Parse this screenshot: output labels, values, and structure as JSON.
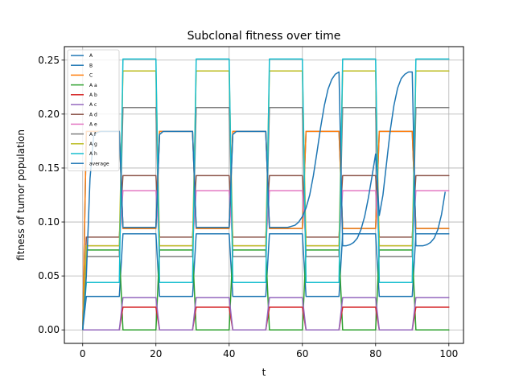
{
  "chart_data": {
    "type": "line",
    "title": "Subclonal fitness over time",
    "xlabel": "t",
    "ylabel": "fitness of tumor population",
    "xlim": [
      -5,
      104
    ],
    "ylim": [
      -0.0125,
      0.2625
    ],
    "xticks": [
      0,
      20,
      40,
      60,
      80,
      100
    ],
    "yticks": [
      0.0,
      0.05,
      0.1,
      0.15,
      0.2,
      0.25
    ],
    "ytick_labels": [
      "0.00",
      "0.05",
      "0.10",
      "0.15",
      "0.20",
      "0.25"
    ],
    "grid": true,
    "legend_position": "top-left",
    "x_end": 99,
    "segments": [
      {
        "on": [
          1,
          9
        ],
        "off": [
          10,
          11
        ]
      },
      {
        "on": [
          21,
          29
        ],
        "off": [
          30,
          31
        ]
      },
      {
        "on": [
          41,
          49
        ],
        "off": [
          50,
          51
        ]
      },
      {
        "on": [
          61,
          69
        ],
        "off": [
          70,
          71
        ]
      },
      {
        "on": [
          81,
          89
        ],
        "off": [
          90,
          91
        ]
      }
    ],
    "series": [
      {
        "name": "A",
        "color": "#1f77b4",
        "on_value": 0.184,
        "off_value": 0.094
      },
      {
        "name": "B",
        "color": "#1f77b4",
        "on_value": 0.031,
        "off_value": 0.089
      },
      {
        "name": "C",
        "color": "#ff7f0e",
        "on_value": 0.184,
        "off_value": 0.094
      },
      {
        "name": "A a",
        "color": "#2ca02c",
        "on_value": 0.074,
        "off_value": 0.0
      },
      {
        "name": "A b",
        "color": "#d62728",
        "on_value": 0.0,
        "off_value": 0.021
      },
      {
        "name": "A c",
        "color": "#9467bd",
        "on_value": 0.0,
        "off_value": 0.03
      },
      {
        "name": "A d",
        "color": "#8c564b",
        "on_value": 0.086,
        "off_value": 0.143
      },
      {
        "name": "A e",
        "color": "#e377c2",
        "on_value": 0.078,
        "off_value": 0.129
      },
      {
        "name": "A f",
        "color": "#7f7f7f",
        "on_value": 0.068,
        "off_value": 0.206
      },
      {
        "name": "A g",
        "color": "#bcbd22",
        "on_value": 0.078,
        "off_value": 0.24
      },
      {
        "name": "A h",
        "color": "#17becf",
        "on_value": 0.044,
        "off_value": 0.251
      },
      {
        "name": "average",
        "color": "#1f77b4"
      }
    ],
    "average_points": [
      [
        0,
        0.0
      ],
      [
        1,
        0.05
      ],
      [
        2,
        0.14
      ],
      [
        3,
        0.18
      ],
      [
        4,
        0.183
      ],
      [
        5,
        0.184
      ],
      [
        6,
        0.184
      ],
      [
        7,
        0.184
      ],
      [
        8,
        0.184
      ],
      [
        9,
        0.184
      ],
      [
        10,
        0.184
      ],
      [
        11,
        0.095
      ],
      [
        12,
        0.095
      ],
      [
        13,
        0.095
      ],
      [
        14,
        0.095
      ],
      [
        15,
        0.095
      ],
      [
        16,
        0.095
      ],
      [
        17,
        0.095
      ],
      [
        18,
        0.095
      ],
      [
        19,
        0.095
      ],
      [
        20,
        0.095
      ],
      [
        21,
        0.181
      ],
      [
        22,
        0.184
      ],
      [
        23,
        0.184
      ],
      [
        24,
        0.184
      ],
      [
        25,
        0.184
      ],
      [
        26,
        0.184
      ],
      [
        27,
        0.184
      ],
      [
        28,
        0.184
      ],
      [
        29,
        0.184
      ],
      [
        30,
        0.184
      ],
      [
        31,
        0.095
      ],
      [
        32,
        0.095
      ],
      [
        33,
        0.095
      ],
      [
        34,
        0.095
      ],
      [
        35,
        0.095
      ],
      [
        36,
        0.095
      ],
      [
        37,
        0.095
      ],
      [
        38,
        0.095
      ],
      [
        39,
        0.095
      ],
      [
        40,
        0.095
      ],
      [
        41,
        0.181
      ],
      [
        42,
        0.184
      ],
      [
        43,
        0.184
      ],
      [
        44,
        0.184
      ],
      [
        45,
        0.184
      ],
      [
        46,
        0.184
      ],
      [
        47,
        0.184
      ],
      [
        48,
        0.184
      ],
      [
        49,
        0.184
      ],
      [
        50,
        0.184
      ],
      [
        51,
        0.095
      ],
      [
        52,
        0.095
      ],
      [
        53,
        0.095
      ],
      [
        54,
        0.095
      ],
      [
        55,
        0.095
      ],
      [
        56,
        0.095
      ],
      [
        57,
        0.096
      ],
      [
        58,
        0.097
      ],
      [
        59,
        0.1
      ],
      [
        60,
        0.105
      ],
      [
        61,
        0.113
      ],
      [
        62,
        0.125
      ],
      [
        63,
        0.143
      ],
      [
        64,
        0.165
      ],
      [
        65,
        0.188
      ],
      [
        66,
        0.208
      ],
      [
        67,
        0.223
      ],
      [
        68,
        0.232
      ],
      [
        69,
        0.237
      ],
      [
        70,
        0.239
      ],
      [
        71,
        0.078
      ],
      [
        72,
        0.078
      ],
      [
        73,
        0.079
      ],
      [
        74,
        0.081
      ],
      [
        75,
        0.085
      ],
      [
        76,
        0.093
      ],
      [
        77,
        0.105
      ],
      [
        78,
        0.122
      ],
      [
        79,
        0.142
      ],
      [
        80,
        0.163
      ],
      [
        81,
        0.106
      ],
      [
        82,
        0.125
      ],
      [
        83,
        0.155
      ],
      [
        84,
        0.185
      ],
      [
        85,
        0.208
      ],
      [
        86,
        0.224
      ],
      [
        87,
        0.233
      ],
      [
        88,
        0.237
      ],
      [
        89,
        0.239
      ],
      [
        90,
        0.239
      ],
      [
        91,
        0.078
      ],
      [
        92,
        0.078
      ],
      [
        93,
        0.078
      ],
      [
        94,
        0.079
      ],
      [
        95,
        0.081
      ],
      [
        96,
        0.085
      ],
      [
        97,
        0.093
      ],
      [
        98,
        0.107
      ],
      [
        99,
        0.128
      ]
    ]
  }
}
